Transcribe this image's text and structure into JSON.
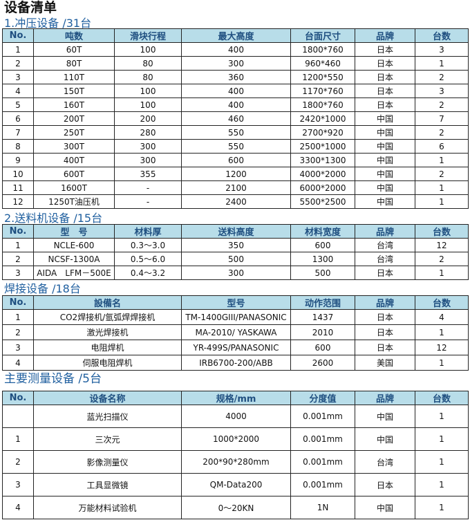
{
  "title": "设备清单",
  "sections": [
    {
      "heading": "1.冲压设备 /31台",
      "headers": [
        "No.",
        "吨数",
        "滑块行程",
        "最大高度",
        "台面尺寸",
        "品牌",
        "台数"
      ],
      "rows": [
        [
          "1",
          "60T",
          "100",
          "400",
          "1800*760",
          "日本",
          "3"
        ],
        [
          "2",
          "80T",
          "80",
          "300",
          "960*460",
          "日本",
          "1"
        ],
        [
          "3",
          "110T",
          "80",
          "360",
          "1200*550",
          "日本",
          "2"
        ],
        [
          "4",
          "150T",
          "100",
          "400",
          "1170*760",
          "日本",
          "3"
        ],
        [
          "5",
          "160T",
          "100",
          "400",
          "1800*760",
          "日本",
          "2"
        ],
        [
          "6",
          "200T",
          "200",
          "460",
          "2420*1000",
          "中国",
          "7"
        ],
        [
          "7",
          "250T",
          "280",
          "550",
          "2700*920",
          "中国",
          "2"
        ],
        [
          "8",
          "300T",
          "300",
          "550",
          "2500*1000",
          "中国",
          "6"
        ],
        [
          "9",
          "400T",
          "300",
          "600",
          "3300*1300",
          "中国",
          "1"
        ],
        [
          "10",
          "600T",
          "355",
          "1200",
          "4000*2000",
          "中国",
          "2"
        ],
        [
          "11",
          "1600T",
          "-",
          "2100",
          "6000*2000",
          "中国",
          "1"
        ],
        [
          "12",
          "1250T油压机",
          "-",
          "2400",
          "5500*2500",
          "中国",
          "1"
        ]
      ]
    },
    {
      "heading": "2.送料机设备 /15台",
      "headers": [
        "No.",
        "型　号",
        "材料厚",
        "送料高度",
        "材料宽度",
        "品牌",
        "台数"
      ],
      "rows": [
        [
          "1",
          "NCLE-600",
          "0.3～3.0",
          "350",
          "600",
          "台湾",
          "12"
        ],
        [
          "2",
          "NCSF-1300A",
          "0.5～6.0",
          "500",
          "1300",
          "台湾",
          "2"
        ],
        [
          "3",
          "AIDA　LFM－500E",
          "0.4～3.2",
          "300",
          "500",
          "日本",
          "1"
        ]
      ]
    },
    {
      "heading": "焊接设备 /18台",
      "headers": [
        "No.",
        "設備名",
        "型号",
        "动作范围",
        "品牌",
        "台数"
      ],
      "rows": [
        [
          "1",
          "CO2焊接机/氩弧焊焊接机",
          "TM-1400GIII/PANASONIC",
          "1437",
          "日本",
          "4"
        ],
        [
          "2",
          "激光焊接机",
          "MA-2010/ YASKAWA",
          "2010",
          "日本",
          "1"
        ],
        [
          "3",
          "电阻焊机",
          "YR-499S/PANASONIC",
          "600",
          "日本",
          "12"
        ],
        [
          "4",
          "伺服电阻焊机",
          "IRB6700-200/ABB",
          "2600",
          "美国",
          "1"
        ]
      ]
    },
    {
      "heading": "主要测量设备 /5台",
      "headers": [
        "No.",
        "设备名称",
        "规格/mm",
        "分度值",
        "品牌",
        "台数"
      ],
      "rows": [
        [
          "",
          "蓝光扫描仪",
          "4000",
          "0.001mm",
          "中国",
          "1"
        ],
        [
          "1",
          "三次元",
          "1000*2000",
          "0.001mm",
          "中国",
          "1"
        ],
        [
          "2",
          "影像测量仪",
          "200*90*280mm",
          "0.001mm",
          "台湾",
          "1"
        ],
        [
          "3",
          "工具显微镜",
          "QM-Data200",
          "0.001mm",
          "日本",
          "1"
        ],
        [
          "4",
          "万能材料试验机",
          "0～20KN",
          "1N",
          "中国",
          "1"
        ]
      ]
    }
  ]
}
